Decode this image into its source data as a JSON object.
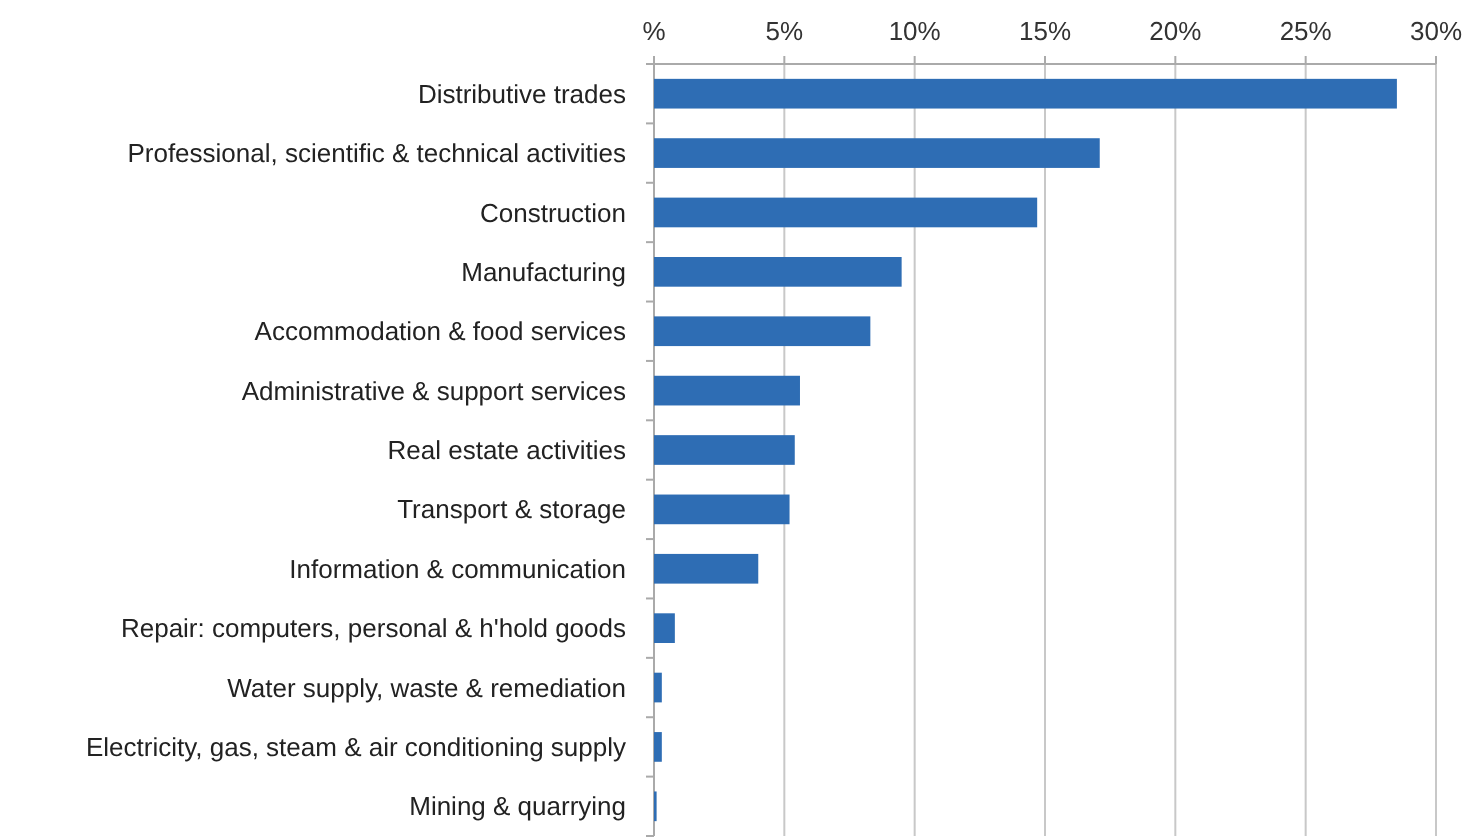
{
  "chart_data": {
    "type": "bar",
    "orientation": "horizontal",
    "categories": [
      "Distributive trades",
      "Professional, scientific & technical activities",
      "Construction",
      "Manufacturing",
      "Accommodation & food services",
      "Administrative & support services",
      "Real estate activities",
      "Transport & storage",
      "Information & communication",
      "Repair: computers, personal & h'hold goods",
      "Water supply, waste & remediation",
      "Electricity, gas, steam & air conditioning supply",
      "Mining & quarrying"
    ],
    "values": [
      28.5,
      17.1,
      14.7,
      9.5,
      8.3,
      5.6,
      5.4,
      5.2,
      4.0,
      0.8,
      0.3,
      0.3,
      0.1
    ],
    "color": "#2e6db4",
    "xlim": [
      0,
      30
    ],
    "xticks": [
      {
        "value": 0,
        "label": "%"
      },
      {
        "value": 5,
        "label": "5%"
      },
      {
        "value": 10,
        "label": "10%"
      },
      {
        "value": 15,
        "label": "15%"
      },
      {
        "value": 20,
        "label": "20%"
      },
      {
        "value": 25,
        "label": "25%"
      },
      {
        "value": 30,
        "label": "30%"
      }
    ],
    "grid": "x"
  }
}
